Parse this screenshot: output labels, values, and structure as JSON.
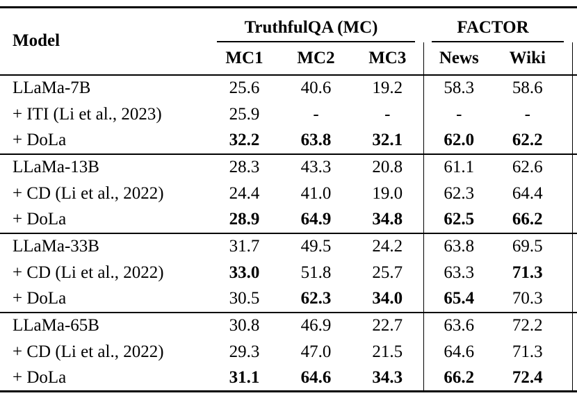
{
  "page": {
    "background": "#ffffff",
    "text_color": "#000000",
    "rule_color": "#000000"
  },
  "table": {
    "header": {
      "model": "Model",
      "groups": [
        {
          "label": "TruthfulQA (MC)"
        },
        {
          "label": "FACTOR"
        }
      ],
      "subcolumns": [
        "MC1",
        "MC2",
        "MC3",
        "News",
        "Wiki"
      ]
    },
    "sections": [
      {
        "rows": [
          {
            "label": "LLaMa-7B",
            "values": [
              "25.6",
              "40.6",
              "19.2",
              "58.3",
              "58.6"
            ],
            "bold": [
              false,
              false,
              false,
              false,
              false
            ]
          },
          {
            "label": "+ ITI (Li et al., 2023)",
            "values": [
              "25.9",
              "-",
              "-",
              "-",
              "-"
            ],
            "bold": [
              false,
              false,
              false,
              false,
              false
            ]
          },
          {
            "label": "+ DoLa",
            "values": [
              "32.2",
              "63.8",
              "32.1",
              "62.0",
              "62.2"
            ],
            "bold": [
              true,
              true,
              true,
              true,
              true
            ]
          }
        ]
      },
      {
        "rows": [
          {
            "label": "LLaMa-13B",
            "values": [
              "28.3",
              "43.3",
              "20.8",
              "61.1",
              "62.6"
            ],
            "bold": [
              false,
              false,
              false,
              false,
              false
            ]
          },
          {
            "label": "+ CD (Li et al., 2022)",
            "values": [
              "24.4",
              "41.0",
              "19.0",
              "62.3",
              "64.4"
            ],
            "bold": [
              false,
              false,
              false,
              false,
              false
            ]
          },
          {
            "label": "+ DoLa",
            "values": [
              "28.9",
              "64.9",
              "34.8",
              "62.5",
              "66.2"
            ],
            "bold": [
              true,
              true,
              true,
              true,
              true
            ]
          }
        ]
      },
      {
        "rows": [
          {
            "label": "LLaMa-33B",
            "values": [
              "31.7",
              "49.5",
              "24.2",
              "63.8",
              "69.5"
            ],
            "bold": [
              false,
              false,
              false,
              false,
              false
            ]
          },
          {
            "label": "+ CD (Li et al., 2022)",
            "values": [
              "33.0",
              "51.8",
              "25.7",
              "63.3",
              "71.3"
            ],
            "bold": [
              true,
              false,
              false,
              false,
              true
            ]
          },
          {
            "label": "+ DoLa",
            "values": [
              "30.5",
              "62.3",
              "34.0",
              "65.4",
              "70.3"
            ],
            "bold": [
              false,
              true,
              true,
              true,
              false
            ]
          }
        ]
      },
      {
        "rows": [
          {
            "label": "LLaMa-65B",
            "values": [
              "30.8",
              "46.9",
              "22.7",
              "63.6",
              "72.2"
            ],
            "bold": [
              false,
              false,
              false,
              false,
              false
            ]
          },
          {
            "label": "+ CD (Li et al., 2022)",
            "values": [
              "29.3",
              "47.0",
              "21.5",
              "64.6",
              "71.3"
            ],
            "bold": [
              false,
              false,
              false,
              false,
              false
            ]
          },
          {
            "label": "+ DoLa",
            "values": [
              "31.1",
              "64.6",
              "34.3",
              "66.2",
              "72.4"
            ],
            "bold": [
              true,
              true,
              true,
              true,
              true
            ]
          }
        ]
      }
    ]
  }
}
